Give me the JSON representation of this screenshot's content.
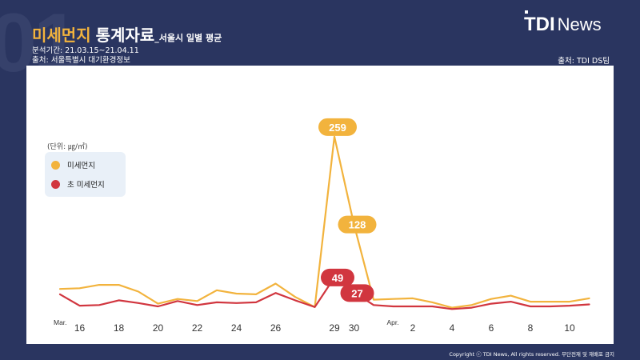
{
  "header": {
    "bg_number": "01",
    "title_highlight": "미세먼지",
    "title_main": "통계자료",
    "title_sub": "_서울시 일별 평균",
    "period": "분석기간: 21.03.15~21.04.11",
    "source_line": "출처: 서울특별시 대기환경정보",
    "source_right": "출처: TDI DS팀"
  },
  "logo": {
    "tdi": "TDI",
    "news": "News"
  },
  "legend": {
    "unit": "(단위: ㎍/㎥)",
    "items": [
      {
        "label": "미세먼지",
        "color": "#f2b33d"
      },
      {
        "label": "초 미세먼지",
        "color": "#d1363f"
      }
    ]
  },
  "footer": {
    "copyright": "Copyright ⓒ TDI News, All rights reserved. 무단전재 및 재배포 금지"
  },
  "chart_data": {
    "type": "line",
    "x": [
      "03-15",
      "03-16",
      "03-17",
      "03-18",
      "03-19",
      "03-20",
      "03-21",
      "03-22",
      "03-23",
      "03-24",
      "03-25",
      "03-26",
      "03-27",
      "03-28",
      "03-29",
      "03-30",
      "03-31",
      "04-01",
      "04-02",
      "04-03",
      "04-04",
      "04-05",
      "04-06",
      "04-07",
      "04-08",
      "04-09",
      "04-10",
      "04-11"
    ],
    "tick_labels": [
      {
        "x": "03-16",
        "label": "16"
      },
      {
        "x": "03-18",
        "label": "18"
      },
      {
        "x": "03-20",
        "label": "20"
      },
      {
        "x": "03-22",
        "label": "22"
      },
      {
        "x": "03-24",
        "label": "24"
      },
      {
        "x": "03-26",
        "label": "26"
      },
      {
        "x": "03-29",
        "label": "29"
      },
      {
        "x": "03-30",
        "label": "30"
      },
      {
        "x": "04-02",
        "label": "2"
      },
      {
        "x": "04-04",
        "label": "4"
      },
      {
        "x": "04-06",
        "label": "6"
      },
      {
        "x": "04-08",
        "label": "8"
      },
      {
        "x": "04-10",
        "label": "10"
      }
    ],
    "month_labels": [
      {
        "x": "03-15",
        "label": "Mar."
      },
      {
        "x": "04-01",
        "label": "Apr."
      }
    ],
    "series": [
      {
        "name": "미세먼지",
        "color": "#f2b33d",
        "values": [
          32,
          33,
          38,
          38,
          28,
          10,
          17,
          14,
          30,
          25,
          24,
          40,
          20,
          5,
          259,
          128,
          16,
          17,
          18,
          12,
          4,
          8,
          17,
          22,
          13,
          13,
          13,
          18
        ]
      },
      {
        "name": "초 미세먼지",
        "color": "#d1363f",
        "values": [
          24,
          7,
          8,
          15,
          11,
          6,
          14,
          8,
          12,
          11,
          12,
          26,
          15,
          5,
          49,
          27,
          8,
          6,
          6,
          6,
          2,
          4,
          10,
          13,
          6,
          6,
          7,
          9
        ]
      }
    ],
    "data_labels": [
      {
        "series": 0,
        "x": "03-29",
        "label": "259"
      },
      {
        "series": 0,
        "x": "03-30",
        "label": "128"
      },
      {
        "series": 1,
        "x": "03-29",
        "label": "49"
      },
      {
        "series": 1,
        "x": "03-30",
        "label": "27"
      }
    ],
    "ylim": [
      0,
      260
    ],
    "grid": false
  }
}
